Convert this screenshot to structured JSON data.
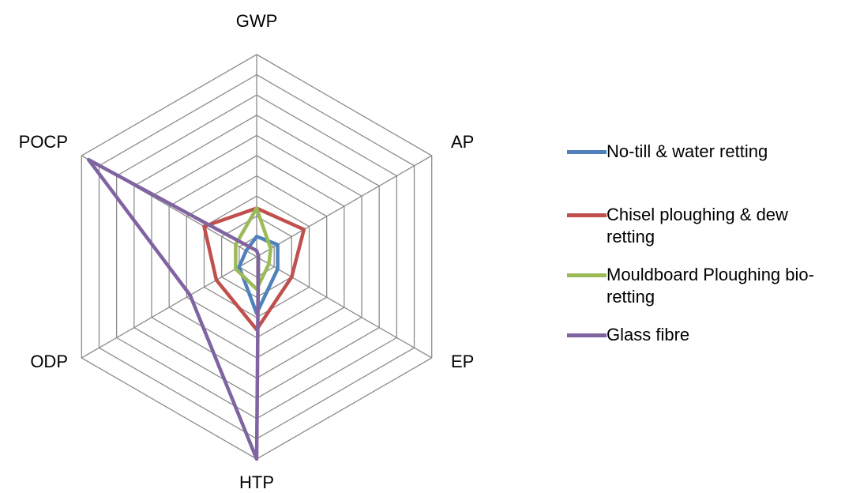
{
  "chart_data": {
    "type": "radar",
    "title": "",
    "axes": [
      "GWP",
      "AP",
      "EP",
      "HTP",
      "ODP",
      "POCP"
    ],
    "rmax": 10,
    "grid_rings": 10,
    "grid": true,
    "legend_position": "right",
    "series": [
      {
        "name": "No-till & water retting",
        "color": "#4F81BD",
        "values": [
          1.0,
          1.2,
          1.2,
          2.8,
          1.0,
          0.6
        ]
      },
      {
        "name": "Chisel ploughing & dew retting",
        "color": "#C0504D",
        "values": [
          2.4,
          2.7,
          2.0,
          3.6,
          2.3,
          3.0
        ]
      },
      {
        "name": "Mouldboard Ploughing bio-retting",
        "color": "#9BBB59",
        "values": [
          2.4,
          0.8,
          0.7,
          1.6,
          1.2,
          1.2
        ]
      },
      {
        "name": "Glass fibre",
        "color": "#8064A2",
        "values": [
          0.3,
          0.1,
          0.1,
          10.0,
          3.8,
          9.6
        ]
      }
    ]
  }
}
